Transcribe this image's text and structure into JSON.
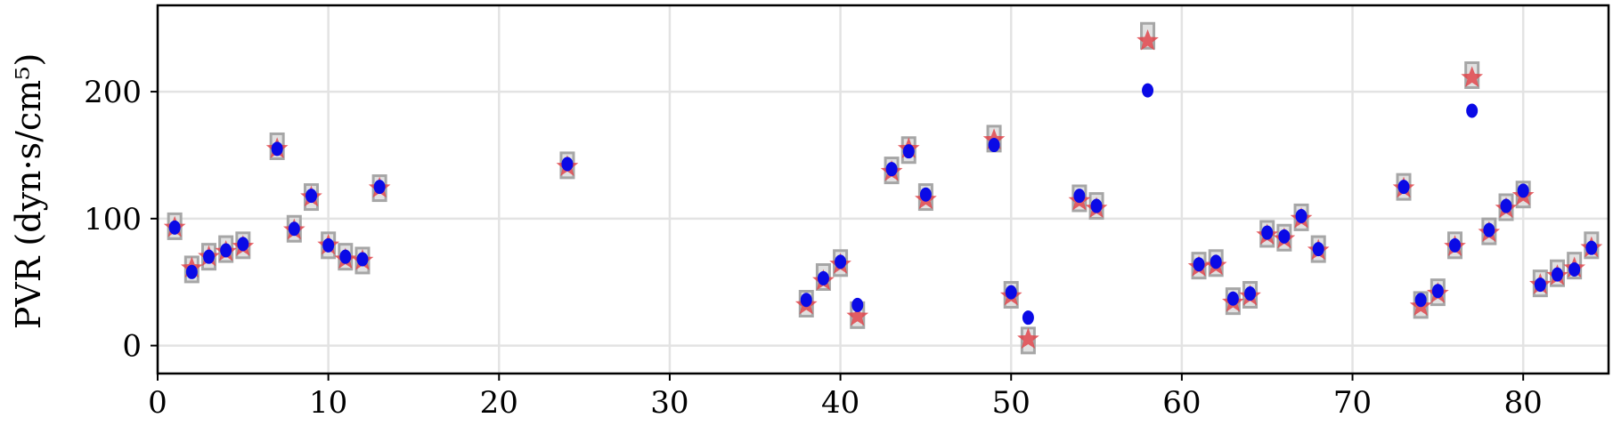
{
  "chart_data": {
    "type": "scatter",
    "title": "",
    "xlabel": "",
    "ylabel": "PVR (dyn·s/cm⁵)",
    "xlim": [
      0,
      85
    ],
    "ylim": [
      -22,
      268
    ],
    "xticks": [
      0,
      10,
      20,
      30,
      40,
      50,
      60,
      70,
      80
    ],
    "xtick_labels": [
      "0",
      "10",
      "20",
      "30",
      "40",
      "50",
      "60",
      "70",
      "80"
    ],
    "yticks": [
      0,
      100,
      200
    ],
    "ytick_labels": [
      "0",
      "100",
      "200"
    ],
    "grid": true,
    "legend": "none",
    "series": [
      {
        "marker": "square",
        "color": "#a6a6a6",
        "points": [
          [
            1,
            94
          ],
          [
            2,
            60
          ],
          [
            3,
            70
          ],
          [
            4,
            76
          ],
          [
            5,
            79
          ],
          [
            7,
            157
          ],
          [
            8,
            92
          ],
          [
            9,
            117
          ],
          [
            10,
            79
          ],
          [
            11,
            70
          ],
          [
            12,
            67
          ],
          [
            13,
            124
          ],
          [
            24,
            142
          ],
          [
            38,
            33
          ],
          [
            39,
            54
          ],
          [
            40,
            65
          ],
          [
            41,
            24
          ],
          [
            43,
            138
          ],
          [
            44,
            154
          ],
          [
            45,
            117
          ],
          [
            49,
            163
          ],
          [
            50,
            40
          ],
          [
            51,
            4
          ],
          [
            54,
            116
          ],
          [
            55,
            110
          ],
          [
            58,
            244
          ],
          [
            61,
            63
          ],
          [
            62,
            65
          ],
          [
            63,
            35
          ],
          [
            64,
            40
          ],
          [
            65,
            88
          ],
          [
            66,
            85
          ],
          [
            67,
            101
          ],
          [
            68,
            76
          ],
          [
            73,
            125
          ],
          [
            74,
            32
          ],
          [
            75,
            42
          ],
          [
            76,
            79
          ],
          [
            77,
            213
          ],
          [
            78,
            90
          ],
          [
            79,
            109
          ],
          [
            80,
            119
          ],
          [
            81,
            49
          ],
          [
            82,
            57
          ],
          [
            83,
            63
          ],
          [
            84,
            79
          ]
        ]
      },
      {
        "marker": "star",
        "color": "#e0474c",
        "points": [
          [
            1,
            93
          ],
          [
            2,
            61
          ],
          [
            3,
            70
          ],
          [
            4,
            74
          ],
          [
            5,
            78
          ],
          [
            7,
            155
          ],
          [
            8,
            91
          ],
          [
            9,
            117
          ],
          [
            10,
            79
          ],
          [
            11,
            68
          ],
          [
            12,
            67
          ],
          [
            13,
            124
          ],
          [
            24,
            141
          ],
          [
            38,
            32
          ],
          [
            39,
            51
          ],
          [
            40,
            64
          ],
          [
            41,
            23
          ],
          [
            43,
            137
          ],
          [
            44,
            155
          ],
          [
            45,
            115
          ],
          [
            49,
            162
          ],
          [
            50,
            39
          ],
          [
            51,
            5
          ],
          [
            54,
            114
          ],
          [
            55,
            108
          ],
          [
            58,
            240
          ],
          [
            61,
            62
          ],
          [
            62,
            63
          ],
          [
            63,
            34
          ],
          [
            64,
            39
          ],
          [
            65,
            87
          ],
          [
            66,
            84
          ],
          [
            67,
            100
          ],
          [
            68,
            75
          ],
          [
            73,
            124
          ],
          [
            74,
            31
          ],
          [
            75,
            41
          ],
          [
            76,
            78
          ],
          [
            77,
            211
          ],
          [
            78,
            89
          ],
          [
            79,
            108
          ],
          [
            80,
            118
          ],
          [
            81,
            48
          ],
          [
            82,
            55
          ],
          [
            83,
            61
          ],
          [
            84,
            77
          ]
        ]
      },
      {
        "marker": "dot",
        "color": "#0a0ae6",
        "points": [
          [
            1,
            93
          ],
          [
            2,
            58
          ],
          [
            3,
            70
          ],
          [
            4,
            75
          ],
          [
            5,
            80
          ],
          [
            7,
            155
          ],
          [
            8,
            92
          ],
          [
            9,
            118
          ],
          [
            10,
            79
          ],
          [
            11,
            70
          ],
          [
            12,
            68
          ],
          [
            13,
            125
          ],
          [
            24,
            143
          ],
          [
            38,
            36
          ],
          [
            39,
            53
          ],
          [
            40,
            66
          ],
          [
            41,
            32
          ],
          [
            43,
            139
          ],
          [
            44,
            153
          ],
          [
            45,
            119
          ],
          [
            49,
            158
          ],
          [
            50,
            42
          ],
          [
            51,
            22
          ],
          [
            54,
            118
          ],
          [
            55,
            110
          ],
          [
            58,
            201
          ],
          [
            61,
            64
          ],
          [
            62,
            66
          ],
          [
            63,
            37
          ],
          [
            64,
            41
          ],
          [
            65,
            89
          ],
          [
            66,
            86
          ],
          [
            67,
            102
          ],
          [
            68,
            76
          ],
          [
            73,
            125
          ],
          [
            74,
            36
          ],
          [
            75,
            43
          ],
          [
            76,
            79
          ],
          [
            77,
            185
          ],
          [
            78,
            91
          ],
          [
            79,
            110
          ],
          [
            80,
            122
          ],
          [
            81,
            48
          ],
          [
            82,
            56
          ],
          [
            83,
            60
          ],
          [
            84,
            77
          ]
        ]
      }
    ]
  }
}
